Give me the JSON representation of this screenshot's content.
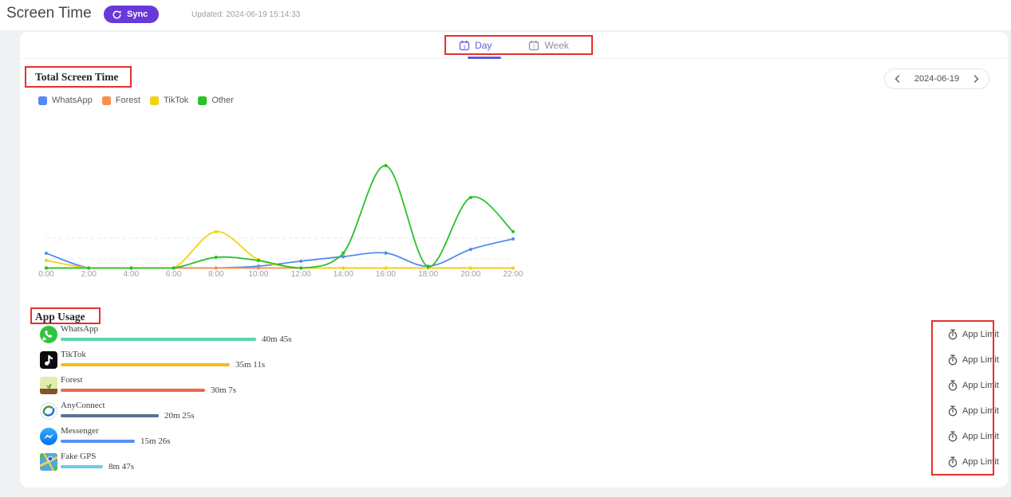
{
  "header": {
    "title": "Screen Time",
    "sync_button": "Sync",
    "updated_text": "Updated: 2024-06-19 15:14:33"
  },
  "tabs": {
    "day": "Day",
    "week": "Week",
    "active": "Day"
  },
  "date_navigator": {
    "date": "2024-06-19"
  },
  "section_titles": {
    "total_screen_time": "Total Screen Time",
    "app_usage": "App Usage"
  },
  "legend": [
    {
      "label": "WhatsApp",
      "color": "#568af2"
    },
    {
      "label": "Forest",
      "color": "#fb8d4b"
    },
    {
      "label": "TikTok",
      "color": "#f0d410"
    },
    {
      "label": "Other",
      "color": "#27c227"
    }
  ],
  "chart_data": {
    "type": "line",
    "title": "Total Screen Time",
    "x_tick_labels": [
      "0:00",
      "2:00",
      "4:00",
      "6:00",
      "8:00",
      "10:00",
      "12:00",
      "14:00",
      "16:00",
      "18:00",
      "20:00",
      "22:00"
    ],
    "x_hours": [
      0,
      2,
      4,
      6,
      8,
      10,
      12,
      14,
      16,
      18,
      20,
      22
    ],
    "xlabel": "",
    "ylabel": "",
    "ylim": [
      0,
      48
    ],
    "grid": "two faint dashed horizontal gridlines",
    "legend_position": "top-left",
    "smooth": true,
    "point_markers": true,
    "series": [
      {
        "name": "WhatsApp",
        "color": "#568af2",
        "values": [
          6.5,
          0,
          0,
          0,
          0,
          0.8,
          3,
          5,
          6.6,
          0.8,
          8.2,
          12.8
        ]
      },
      {
        "name": "Forest",
        "color": "#fb8d4b",
        "values": [
          0,
          0,
          0,
          0,
          0,
          0,
          0,
          0,
          0,
          0,
          0,
          0
        ]
      },
      {
        "name": "TikTok",
        "color": "#f0d410",
        "values": [
          3.3,
          0,
          0,
          0,
          16,
          3.7,
          0,
          0,
          0,
          0,
          0,
          0
        ]
      },
      {
        "name": "Other",
        "color": "#27c227",
        "values": [
          0,
          0,
          0,
          0,
          4.7,
          3.3,
          0,
          6.6,
          45,
          0.5,
          31,
          16
        ]
      }
    ]
  },
  "app_usage": {
    "app_limit_button": "App Limit",
    "max_seconds": 2445,
    "apps": [
      {
        "name": "WhatsApp",
        "time": "40m 45s",
        "seconds": 2445,
        "bar_color": "#5AD8A6",
        "icon": "whatsapp-icon"
      },
      {
        "name": "TikTok",
        "time": "35m 11s",
        "seconds": 2111,
        "bar_color": "#F6BD16",
        "icon": "tiktok-icon"
      },
      {
        "name": "Forest",
        "time": "30m 7s",
        "seconds": 1807,
        "bar_color": "#E8684A",
        "icon": "forest-icon"
      },
      {
        "name": "AnyConnect",
        "time": "20m 25s",
        "seconds": 1225,
        "bar_color": "#5D7092",
        "icon": "anyconnect-icon"
      },
      {
        "name": "Messenger",
        "time": "15m 26s",
        "seconds": 926,
        "bar_color": "#5B8FF9",
        "icon": "messenger-icon"
      },
      {
        "name": "Fake GPS",
        "time": "8m 47s",
        "seconds": 527,
        "bar_color": "#6DC8EC",
        "icon": "fakegps-icon"
      }
    ]
  },
  "annotation_color": "#e5302c"
}
